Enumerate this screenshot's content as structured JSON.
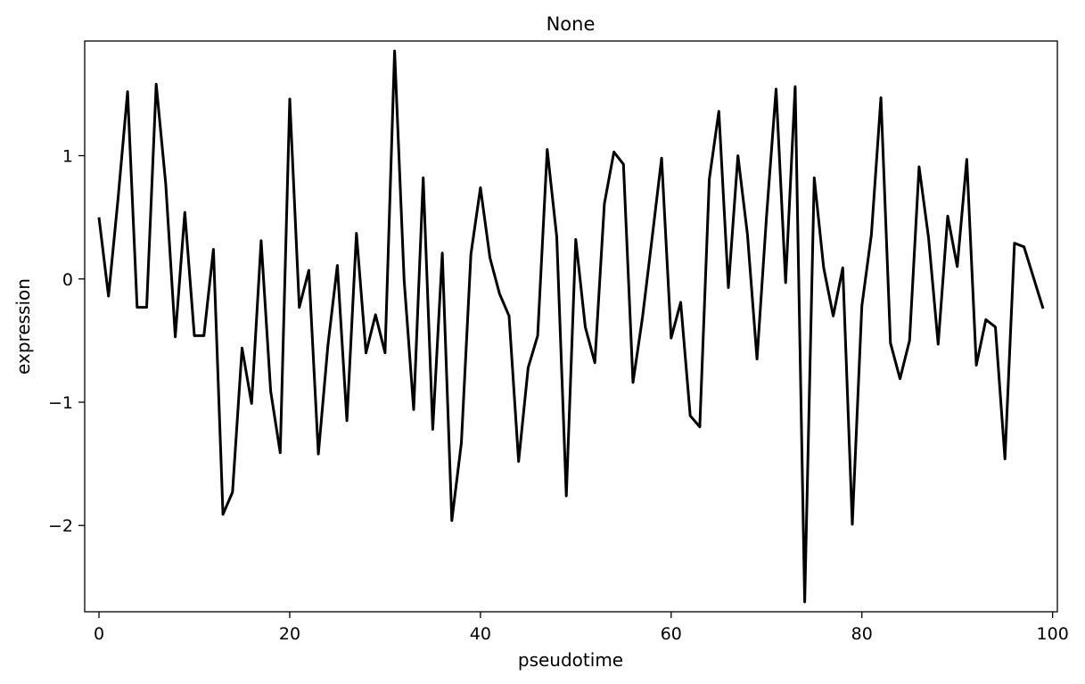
{
  "chart_data": {
    "type": "line",
    "title": "None",
    "xlabel": "pseudotime",
    "ylabel": "expression",
    "xlim": [
      -1.5,
      100.5
    ],
    "ylim": [
      -2.7,
      1.93
    ],
    "x_ticks": [
      0,
      20,
      40,
      60,
      80,
      100
    ],
    "x_tick_labels": [
      "0",
      "20",
      "40",
      "60",
      "80",
      "100"
    ],
    "y_ticks": [
      -2,
      -1,
      0,
      1
    ],
    "y_tick_labels": [
      "−2",
      "−1",
      "0",
      "1"
    ],
    "grid": false,
    "line_color": "#000000",
    "series": [
      {
        "x": [
          0,
          1,
          2,
          3,
          4,
          5,
          6,
          7,
          8,
          9,
          10,
          11,
          12,
          13,
          14,
          15,
          16,
          17,
          18,
          19,
          20,
          21,
          22,
          23,
          24,
          25,
          26,
          27,
          28,
          29,
          30,
          31,
          32,
          33,
          34,
          35,
          36,
          37,
          38,
          39,
          40,
          41,
          42,
          43,
          44,
          45,
          46,
          47,
          48,
          49,
          50,
          51,
          52,
          53,
          54,
          55,
          56,
          57,
          58,
          59,
          60,
          61,
          62,
          63,
          64,
          65,
          66,
          67,
          68,
          69,
          70,
          71,
          72,
          73,
          74,
          75,
          76,
          77,
          78,
          79,
          80,
          81,
          82,
          83,
          84,
          85,
          86,
          87,
          88,
          89,
          90,
          91,
          92,
          93,
          94,
          95,
          96,
          97,
          98,
          99
        ],
        "values": [
          0.5,
          -0.14,
          0.65,
          1.52,
          -0.23,
          -0.23,
          1.58,
          0.77,
          -0.47,
          0.54,
          -0.46,
          -0.46,
          0.24,
          -1.91,
          -1.73,
          -0.56,
          -1.01,
          0.31,
          -0.91,
          -1.41,
          1.46,
          -0.23,
          0.07,
          -1.42,
          -0.54,
          0.11,
          -1.15,
          0.37,
          -0.6,
          -0.29,
          -0.6,
          1.85,
          -0.01,
          -1.06,
          0.82,
          -1.22,
          0.21,
          -1.96,
          -1.33,
          0.2,
          0.74,
          0.17,
          -0.12,
          -0.3,
          -1.48,
          -0.72,
          -0.46,
          1.05,
          0.34,
          -1.76,
          0.32,
          -0.39,
          -0.68,
          0.61,
          1.03,
          0.93,
          -0.84,
          -0.31,
          0.33,
          0.98,
          -0.48,
          -0.19,
          -1.11,
          -1.2,
          0.81,
          1.36,
          -0.07,
          1.0,
          0.36,
          -0.65,
          0.51,
          1.54,
          -0.03,
          1.56,
          -2.62,
          0.82,
          0.09,
          -0.3,
          0.09,
          -1.99,
          -0.22,
          0.36,
          1.47,
          -0.52,
          -0.81,
          -0.5,
          0.91,
          0.33,
          -0.53,
          0.51,
          0.1,
          0.97,
          -0.7,
          -0.33,
          -0.39,
          -1.46,
          0.29,
          0.26,
          0.01,
          -0.24
        ]
      }
    ]
  }
}
